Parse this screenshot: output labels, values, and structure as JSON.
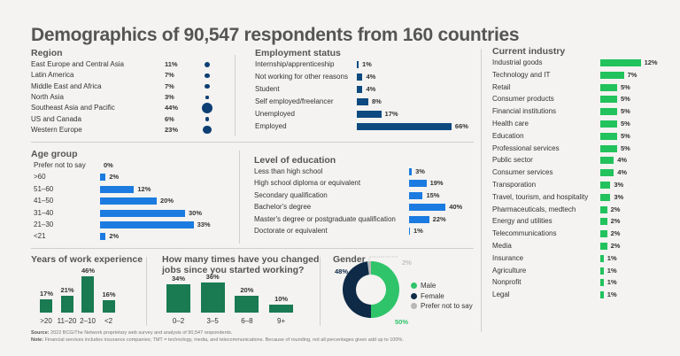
{
  "title": "Demographics of 90,547 respondents from 160 countries",
  "colors": {
    "region_dot": "#0e3f74",
    "employment_bar": "#0e4a80",
    "age_bar": "#1b7be0",
    "education_bar": "#1b7be0",
    "industry_bar": "#22c25c",
    "experience_bar": "#1a7a52",
    "gender_male": "#2fc46a",
    "gender_female": "#0f2a47",
    "gender_prefer_not": "#b7b7b7"
  },
  "chart_data": [
    {
      "id": "region",
      "type": "bubble",
      "title": "Region",
      "categories": [
        "East Europe and Central Asia",
        "Latin America",
        "Middle East and Africa",
        "North Asia",
        "Southeast Asia and Pacific",
        "US and Canada",
        "Western Europe"
      ],
      "values": [
        11,
        7,
        7,
        3,
        44,
        6,
        23
      ],
      "labels": [
        "11%",
        "7%",
        "7%",
        "3%",
        "44%",
        "6%",
        "23%"
      ]
    },
    {
      "id": "employment",
      "type": "bar",
      "title": "Employment status",
      "categories": [
        "Internship/apprenticeship",
        "Not working for other reasons",
        "Student",
        "Self employed/freelancer",
        "Unemployed",
        "Employed"
      ],
      "values": [
        1,
        4,
        4,
        8,
        17,
        66
      ],
      "labels": [
        "1%",
        "4%",
        "4%",
        "8%",
        "17%",
        "66%"
      ]
    },
    {
      "id": "age",
      "type": "bar",
      "title": "Age group",
      "categories": [
        "Prefer not to say",
        ">60",
        "51–60",
        "41–50",
        "31–40",
        "21–30",
        "<21"
      ],
      "values": [
        0,
        2,
        12,
        20,
        30,
        33,
        2
      ],
      "labels": [
        "0%",
        "2%",
        "12%",
        "20%",
        "30%",
        "33%",
        "2%"
      ]
    },
    {
      "id": "education",
      "type": "bar",
      "title": "Level of education",
      "categories": [
        "Less than high school",
        "High school diploma or equivalent",
        "Secondary qualification",
        "Bachelor's degree",
        "Master's degree or postgraduate qualification",
        "Doctorate or equivalent"
      ],
      "values": [
        3,
        19,
        15,
        40,
        22,
        1
      ],
      "labels": [
        "3%",
        "19%",
        "15%",
        "40%",
        "22%",
        "1%"
      ]
    },
    {
      "id": "industry",
      "type": "bar",
      "title": "Current industry",
      "categories": [
        "Industrial goods",
        "Technology and IT",
        "Retail",
        "Consumer products",
        "Financial institutions",
        "Health care",
        "Education",
        "Professional services",
        "Public sector",
        "Consumer services",
        "Transporation",
        "Travel, tourism, and hospitality",
        "Pharmaceuticals, medtech",
        "Energy and utilities",
        "Telecommunications",
        "Media",
        "Insurance",
        "Agriculture",
        "Nonprofit",
        "Legal"
      ],
      "values": [
        12,
        7,
        5,
        5,
        5,
        5,
        5,
        5,
        4,
        4,
        3,
        3,
        2,
        2,
        2,
        2,
        1,
        1,
        1,
        1
      ],
      "labels": [
        "12%",
        "7%",
        "5%",
        "5%",
        "5%",
        "5%",
        "5%",
        "5%",
        "4%",
        "4%",
        "3%",
        "3%",
        "2%",
        "2%",
        "2%",
        "2%",
        "1%",
        "1%",
        "1%",
        "1%"
      ]
    },
    {
      "id": "experience",
      "type": "bar",
      "title": "Years of work experience",
      "categories": [
        ">20",
        "11–20",
        "2–10",
        "<2"
      ],
      "values": [
        17,
        21,
        46,
        16
      ],
      "labels": [
        "17%",
        "21%",
        "46%",
        "16%"
      ]
    },
    {
      "id": "jobchanges",
      "type": "bar",
      "title": "How many times have you changed jobs since you started working?",
      "title_lines": [
        "How many times have you changed",
        "jobs since you started working?"
      ],
      "categories": [
        "0–2",
        "3–5",
        "6–8",
        "9+"
      ],
      "values": [
        34,
        36,
        20,
        10
      ],
      "labels": [
        "34%",
        "36%",
        "20%",
        "10%"
      ]
    },
    {
      "id": "gender",
      "type": "pie",
      "title": "Gender",
      "categories": [
        "Male",
        "Female",
        "Prefer not to say"
      ],
      "values": [
        50,
        48,
        2
      ],
      "labels": [
        "50%",
        "48%",
        "2%"
      ]
    }
  ],
  "footer": {
    "source_label": "Source:",
    "source_text": "2022 BCG/The Network proprietary web survey and analysis of 90,547 respondents.",
    "note_label": "Note:",
    "note_text": "Financial services includes insurance companies; TMT = technology, media, and telecommunications. Because of rounding, not all percentages given add up to 100%."
  }
}
